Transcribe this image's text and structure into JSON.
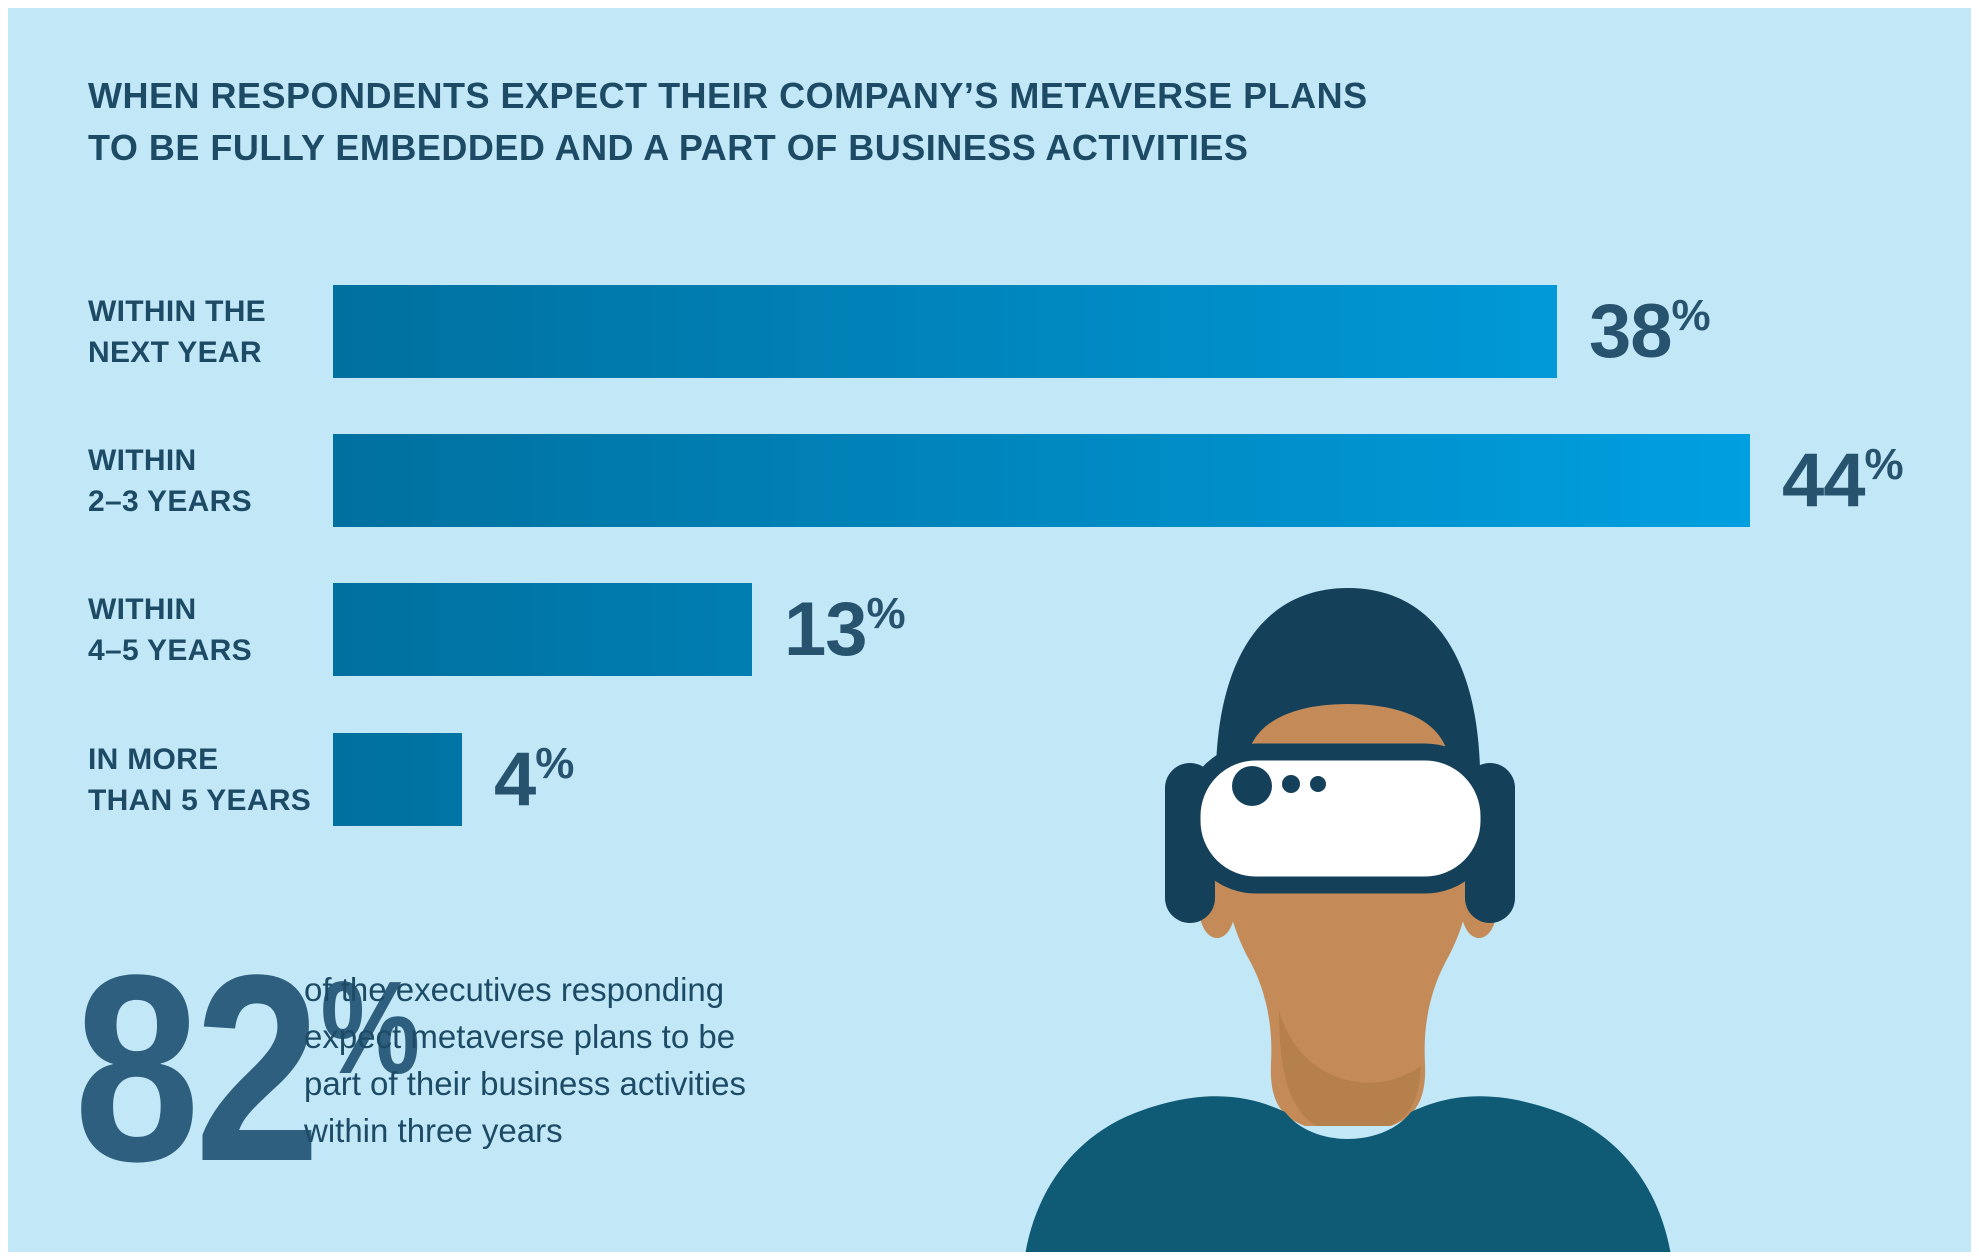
{
  "title": "WHEN RESPONDENTS EXPECT THEIR COMPANY’S METAVERSE PLANS\nTO BE FULLY EMBEDDED AND A PART OF BUSINESS ACTIVITIES",
  "chart_data": {
    "type": "bar",
    "orientation": "horizontal",
    "title": "When respondents expect their company's metaverse plans to be fully embedded and a part of business activities",
    "categories": [
      "WITHIN THE NEXT YEAR",
      "WITHIN 2–3 YEARS",
      "WITHIN 4–5 YEARS",
      "IN MORE THAN 5 YEARS"
    ],
    "values": [
      38,
      44,
      13,
      4
    ],
    "unit": "%",
    "xlim": [
      0,
      44
    ],
    "grid": false,
    "legend": "none",
    "bar_gradient_start": "#00709f",
    "bar_gradient_end": "#009fe0",
    "bars": [
      {
        "label": "WITHIN THE\nNEXT YEAR",
        "value": "38",
        "unit": "%"
      },
      {
        "label": "WITHIN\n2–3 YEARS",
        "value": "44",
        "unit": "%"
      },
      {
        "label": "WITHIN\n4–5 YEARS",
        "value": "13",
        "unit": "%"
      },
      {
        "label": "IN MORE\nTHAN 5 YEARS",
        "value": "4",
        "unit": "%"
      }
    ]
  },
  "callout": {
    "value": "82",
    "unit": "%",
    "text": "of the executives responding\nexpect metaverse plans to be\npart of their business activities\nwithin three years"
  },
  "illustration": {
    "name": "person wearing VR headset"
  },
  "colors": {
    "background": "#c2e8f8",
    "frame": "#ffffff",
    "heading_text": "#1d4b66",
    "value_text": "#28536f",
    "callout_value": "#2f5f7e",
    "bar_gradient_start": "#00709f",
    "bar_gradient_end": "#009fe0",
    "illustration_navy": "#15405a",
    "illustration_skin": "#c48b58",
    "illustration_shirt": "#0f5a75"
  }
}
